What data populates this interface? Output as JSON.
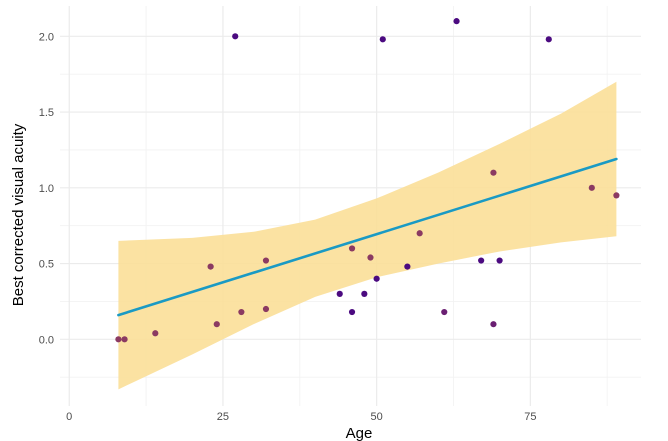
{
  "chart_data": {
    "type": "scatter",
    "title": "",
    "xlabel": "Age",
    "ylabel": "Best corrected visual acuity",
    "xlim": [
      -1.5,
      93
    ],
    "ylim": [
      -0.44,
      2.2
    ],
    "x_ticks": [
      0,
      25,
      50,
      75
    ],
    "x_tick_labels": [
      "0",
      "25",
      "50",
      "75"
    ],
    "y_ticks": [
      0.0,
      0.5,
      1.0,
      1.5,
      2.0
    ],
    "y_tick_labels": [
      "0.0",
      "0.5",
      "1.0",
      "1.5",
      "2.0"
    ],
    "grid": true,
    "legend": "none",
    "series": [
      {
        "points": [
          {
            "x": 8,
            "y": 0.0,
            "color": "#8B3A62"
          },
          {
            "x": 9,
            "y": 0.0,
            "color": "#8B3A62"
          },
          {
            "x": 14,
            "y": 0.04,
            "color": "#8B3A62"
          },
          {
            "x": 23,
            "y": 0.48,
            "color": "#8B3A62"
          },
          {
            "x": 24,
            "y": 0.1,
            "color": "#8B3A62"
          },
          {
            "x": 27,
            "y": 2.0,
            "color": "#4B0A80"
          },
          {
            "x": 28,
            "y": 0.18,
            "color": "#8B3A62"
          },
          {
            "x": 32,
            "y": 0.52,
            "color": "#8B3A62"
          },
          {
            "x": 32,
            "y": 0.2,
            "color": "#8B3A62"
          },
          {
            "x": 44,
            "y": 0.3,
            "color": "#4B0A80"
          },
          {
            "x": 46,
            "y": 0.6,
            "color": "#8B3A62"
          },
          {
            "x": 46,
            "y": 0.18,
            "color": "#4B0A80"
          },
          {
            "x": 48,
            "y": 0.3,
            "color": "#4B0A80"
          },
          {
            "x": 49,
            "y": 0.54,
            "color": "#8B3A62"
          },
          {
            "x": 50,
            "y": 0.4,
            "color": "#4B0A80"
          },
          {
            "x": 51,
            "y": 1.98,
            "color": "#4B0A80"
          },
          {
            "x": 55,
            "y": 0.48,
            "color": "#4B0A80"
          },
          {
            "x": 57,
            "y": 0.7,
            "color": "#8B3A62"
          },
          {
            "x": 61,
            "y": 0.18,
            "color": "#6A1F72"
          },
          {
            "x": 63,
            "y": 2.1,
            "color": "#4B0A80"
          },
          {
            "x": 67,
            "y": 0.52,
            "color": "#4B0A80"
          },
          {
            "x": 69,
            "y": 1.1,
            "color": "#8B3A62"
          },
          {
            "x": 69,
            "y": 0.1,
            "color": "#6A1F72"
          },
          {
            "x": 70,
            "y": 0.52,
            "color": "#4B0A80"
          },
          {
            "x": 78,
            "y": 1.98,
            "color": "#4B0A80"
          },
          {
            "x": 85,
            "y": 1.0,
            "color": "#8B3A62"
          },
          {
            "x": 89,
            "y": 0.95,
            "color": "#8B3A62"
          }
        ]
      }
    ],
    "trend_line": {
      "x": [
        8,
        89
      ],
      "y": [
        0.16,
        1.19
      ],
      "color": "#1A9AC4"
    },
    "confidence_band": {
      "color": "#FBDF98",
      "x": [
        8,
        20,
        30,
        40,
        50,
        60,
        70,
        80,
        89
      ],
      "lower": [
        -0.33,
        -0.1,
        0.1,
        0.28,
        0.41,
        0.5,
        0.58,
        0.64,
        0.68
      ],
      "upper": [
        0.65,
        0.67,
        0.71,
        0.79,
        0.93,
        1.1,
        1.29,
        1.49,
        1.7
      ]
    }
  }
}
